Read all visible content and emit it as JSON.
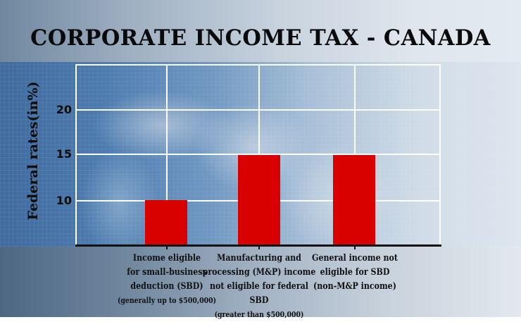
{
  "title": "CORPORATE INCOME TAX - CANADA",
  "colors": {
    "bar": "#d90000",
    "grid": "#ffffff",
    "axis": "#111111",
    "text": "#0d0d0d"
  },
  "chart_data": {
    "type": "bar",
    "title": "CORPORATE INCOME TAX - CANADA",
    "xlabel": "",
    "ylabel": "Federal rates(in%)",
    "ylim": [
      5,
      25
    ],
    "yticks": [
      10,
      15,
      20
    ],
    "grid": true,
    "legend": null,
    "categories": [
      "Income eligible for small-business deduction (SBD) (generally up to $500,000)",
      "Manufacturing and processing (M&P) income not eligible for federal SBD (greater than $500,000)",
      "General income not eligible for SBD (non-M&P income)"
    ],
    "values": [
      10,
      15,
      15
    ]
  },
  "axis": {
    "ylabel": "Federal rates(in%)",
    "yticks": [
      "20",
      "15",
      "10"
    ]
  },
  "categories": [
    {
      "lines": [
        "Income eligible",
        "for small-business",
        "deduction (SBD)"
      ],
      "note": "(generally up to $500,000)",
      "value": 10
    },
    {
      "lines": [
        "Manufacturing and",
        "processing (M&P) income",
        "not eligible for federal SBD"
      ],
      "note": "(greater than $500,000)",
      "value": 15
    },
    {
      "lines": [
        "General income not",
        "eligible for SBD",
        "(non-M&P income)"
      ],
      "note": "",
      "value": 15
    }
  ]
}
